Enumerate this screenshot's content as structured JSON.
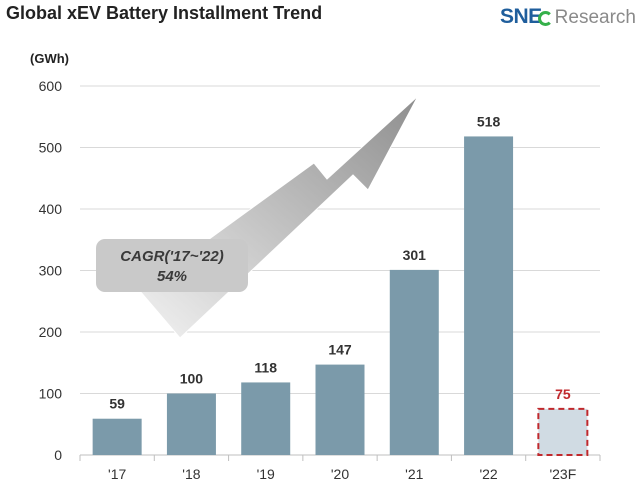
{
  "header": {
    "title": "Global xEV Battery Installment Trend",
    "logo_sne": "SNE",
    "logo_research": "Research"
  },
  "colors": {
    "bar": "#7b9aaa",
    "forecast_fill": "#d0dbe3",
    "forecast_border": "#c0282c",
    "forecast_label": "#c0282c",
    "arrow": "#9c9c9c",
    "callout_bg": "#c9c9c9",
    "grid": "#d9d9d9",
    "text": "#333333"
  },
  "chart_data": {
    "type": "bar",
    "unit_label": "(GWh)",
    "categories": [
      "'17",
      "'18",
      "'19",
      "'20",
      "'21",
      "'22",
      "'23F"
    ],
    "values": [
      59,
      100,
      118,
      147,
      301,
      518,
      75
    ],
    "data_labels": [
      "59",
      "100",
      "118",
      "147",
      "301",
      "518",
      "75"
    ],
    "forecast_index": 6,
    "ylim": [
      0,
      600
    ],
    "yticks": [
      0,
      100,
      200,
      300,
      400,
      500,
      600
    ],
    "grid": true,
    "annotation": {
      "line1": "CAGR('17~'22)",
      "line2": "54%"
    }
  }
}
